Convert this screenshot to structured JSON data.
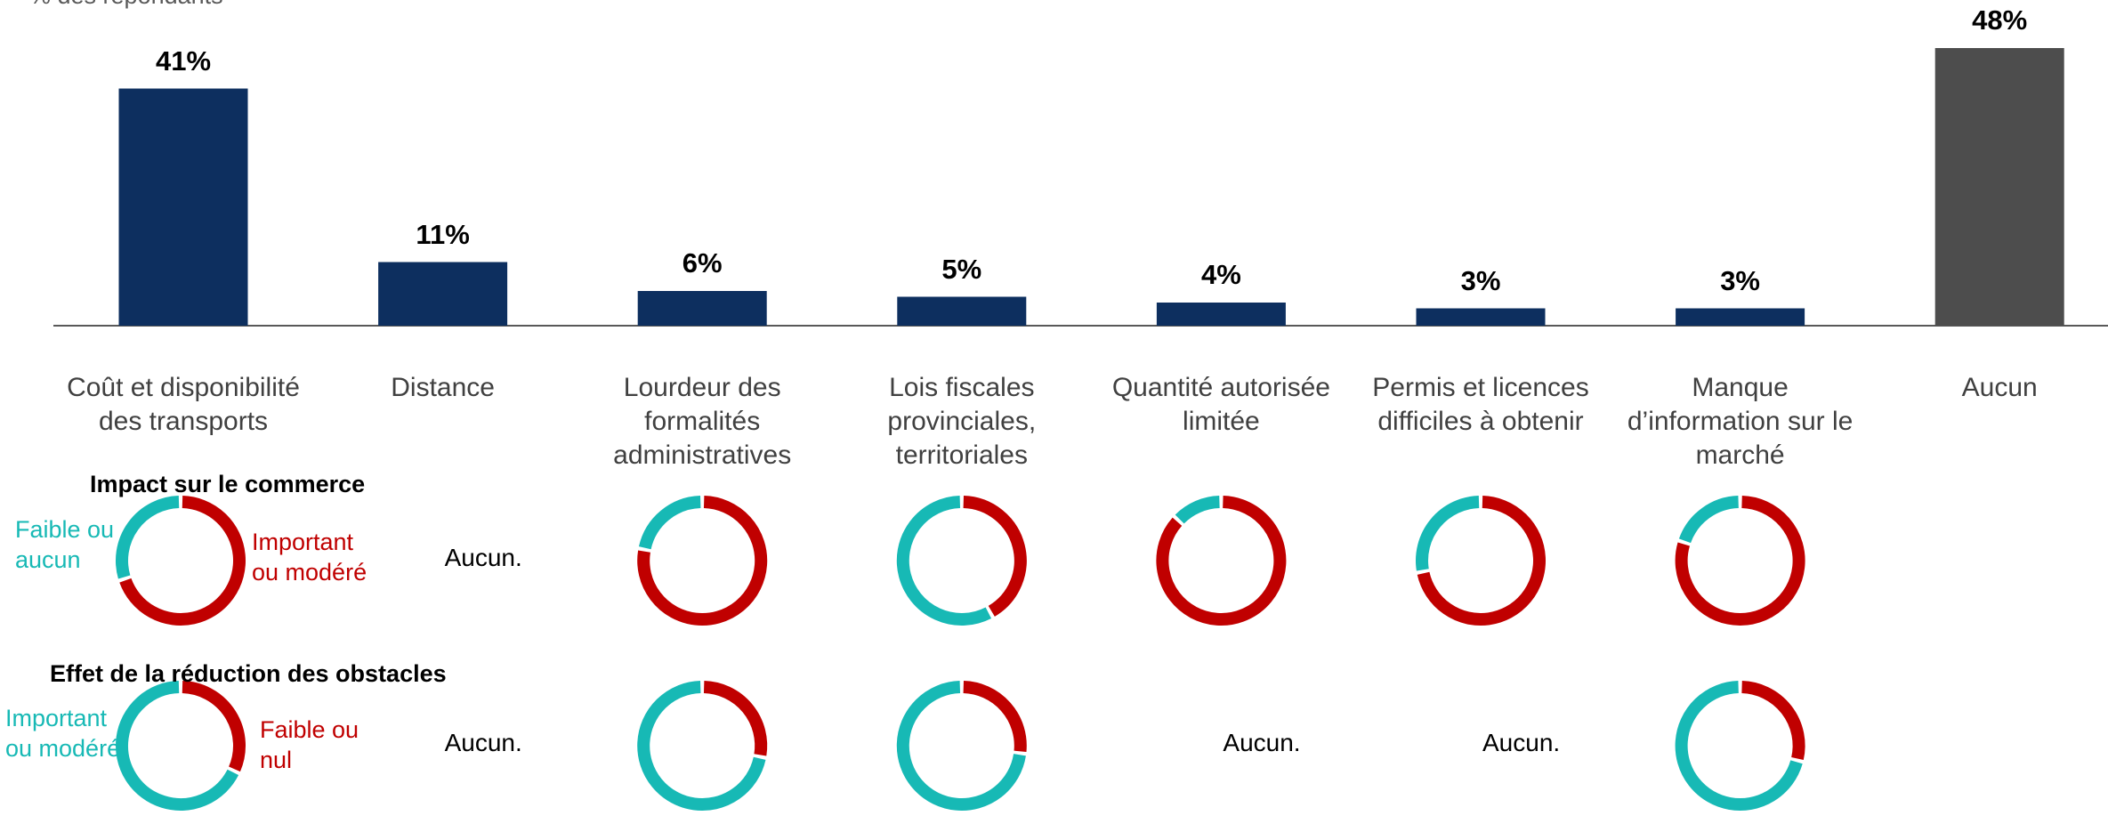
{
  "subtitle": "% des répondants",
  "chart_data": [
    {
      "type": "bar",
      "categories": [
        "Coût et disponibilité des transports",
        "Distance",
        "Lourdeur des formalités administratives",
        "Lois fiscales provinciales, territoriales",
        "Quantité autorisée limitée",
        "Permis et licences difficiles à obtenir",
        "Manque d’information sur le marché",
        "Aucun"
      ],
      "values": [
        41,
        11,
        6,
        5,
        4,
        3,
        3,
        48
      ],
      "value_labels": [
        "41%",
        "11%",
        "6%",
        "5%",
        "4%",
        "3%",
        "3%",
        "48%"
      ],
      "colors": [
        "#0d2f5f",
        "#0d2f5f",
        "#0d2f5f",
        "#0d2f5f",
        "#0d2f5f",
        "#0d2f5f",
        "#0d2f5f",
        "#4d4d4d"
      ]
    },
    {
      "type": "donut",
      "title": "Impact sur le commerce",
      "empty_label": "Aucun.",
      "series": [
        {
          "name": "Important ou modéré",
          "color": "#c00000",
          "values": [
            70,
            null,
            78,
            42,
            87,
            72,
            80
          ]
        },
        {
          "name": "Faible ou aucun",
          "color": "#17b9b5",
          "values": [
            30,
            null,
            22,
            58,
            13,
            28,
            20
          ]
        }
      ]
    },
    {
      "type": "donut",
      "title": "Effet de la réduction des obstacles",
      "empty_label": "Aucun.",
      "series": [
        {
          "name": "Faible ou nul",
          "color": "#c00000",
          "values": [
            32,
            null,
            28,
            27,
            null,
            null,
            29
          ]
        },
        {
          "name": "Important ou modéré",
          "color": "#17b9b5",
          "values": [
            68,
            null,
            72,
            73,
            null,
            null,
            71
          ]
        }
      ]
    }
  ]
}
